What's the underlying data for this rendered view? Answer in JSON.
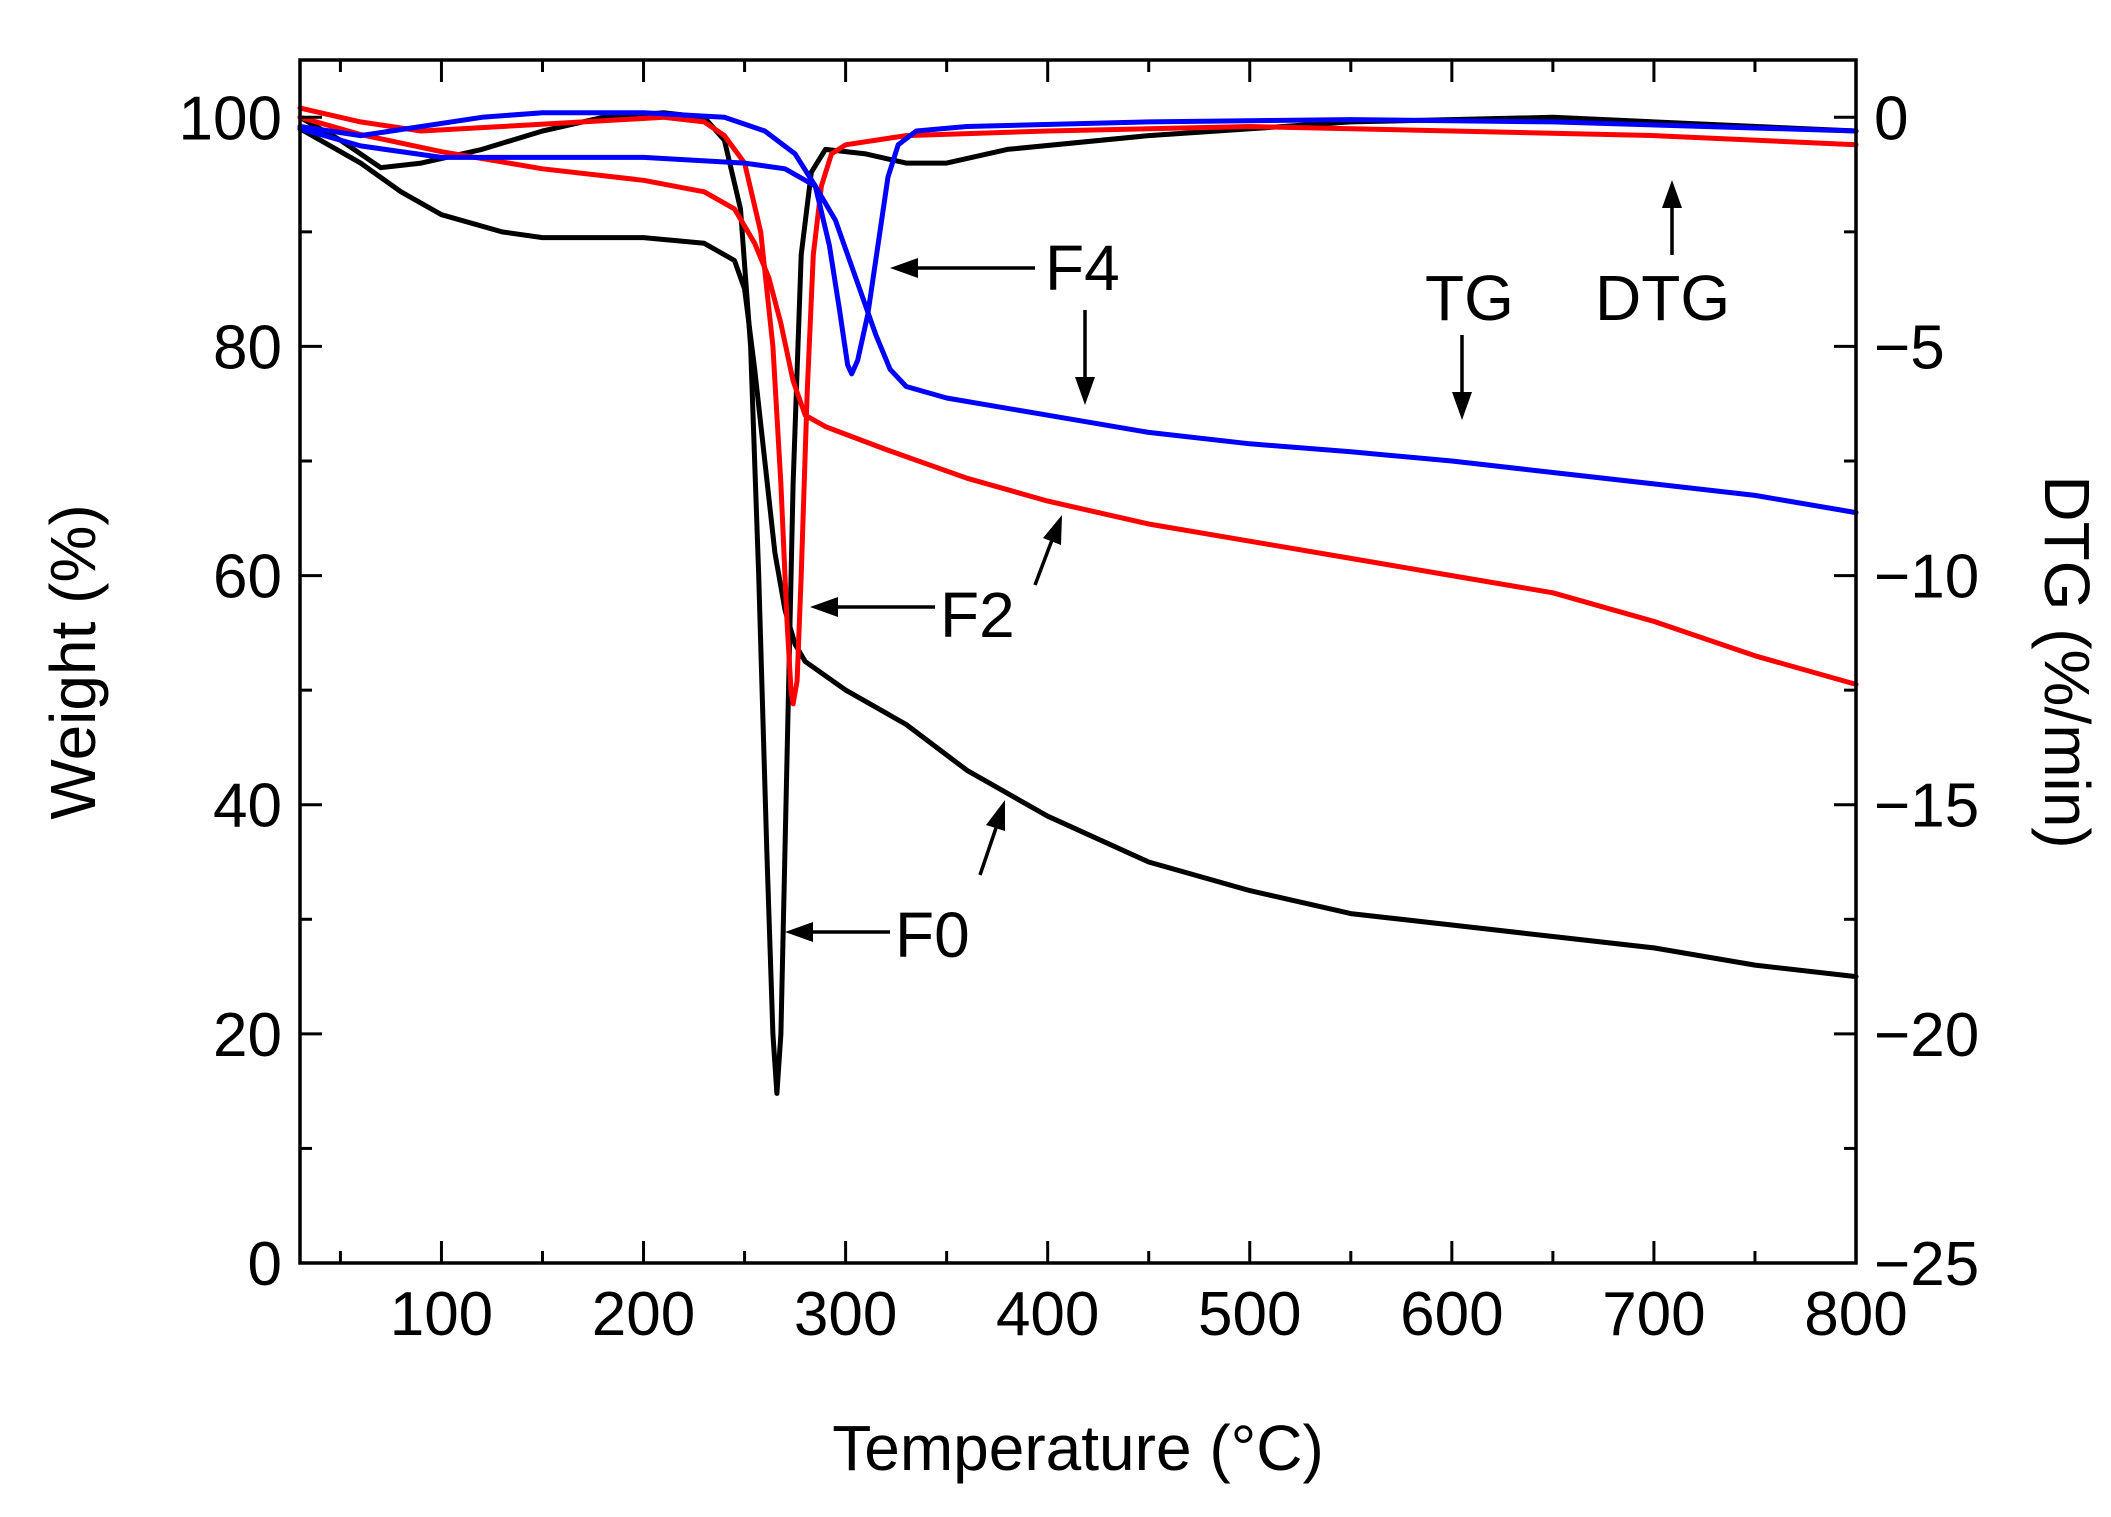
{
  "chart_data": {
    "type": "line",
    "title": "",
    "xlabel": "Temperature (°C)",
    "ylabel_left": "Weight (%)",
    "ylabel_right": "DTG (%/min)",
    "xlim": [
      30,
      800
    ],
    "ylim_left": [
      0,
      105
    ],
    "ylim_right": [
      -25,
      1.25
    ],
    "x_ticks": [
      100,
      200,
      300,
      400,
      500,
      600,
      700,
      800
    ],
    "y_left_ticks": [
      0,
      20,
      40,
      60,
      80,
      100
    ],
    "y_right_ticks": [
      0,
      -5,
      -10,
      -15,
      -20,
      -25
    ],
    "grid": false,
    "colors": {
      "F0": "#000000",
      "F2": "#ff0000",
      "F4": "#0000ff"
    },
    "series": [
      {
        "name": "F0",
        "kind": "TG",
        "axis": "left",
        "color": "#000000",
        "points": [
          [
            30,
            99
          ],
          [
            60,
            96
          ],
          [
            80,
            93.5
          ],
          [
            100,
            91.5
          ],
          [
            130,
            90
          ],
          [
            150,
            89.5
          ],
          [
            200,
            89.5
          ],
          [
            230,
            89
          ],
          [
            245,
            87.5
          ],
          [
            250,
            85
          ],
          [
            255,
            78
          ],
          [
            260,
            70
          ],
          [
            265,
            62
          ],
          [
            270,
            57
          ],
          [
            275,
            54
          ],
          [
            280,
            52.5
          ],
          [
            300,
            50
          ],
          [
            330,
            47
          ],
          [
            360,
            43
          ],
          [
            400,
            39
          ],
          [
            450,
            35
          ],
          [
            500,
            32.5
          ],
          [
            550,
            30.5
          ],
          [
            600,
            29.5
          ],
          [
            650,
            28.5
          ],
          [
            700,
            27.5
          ],
          [
            750,
            26
          ],
          [
            800,
            25
          ]
        ]
      },
      {
        "name": "F0",
        "kind": "DTG",
        "axis": "right",
        "color": "#000000",
        "points": [
          [
            30,
            0
          ],
          [
            50,
            -0.5
          ],
          [
            70,
            -1.1
          ],
          [
            90,
            -1
          ],
          [
            120,
            -0.7
          ],
          [
            150,
            -0.3
          ],
          [
            180,
            0
          ],
          [
            210,
            0.1
          ],
          [
            230,
            0
          ],
          [
            240,
            -0.5
          ],
          [
            248,
            -2
          ],
          [
            253,
            -5
          ],
          [
            257,
            -10
          ],
          [
            261,
            -16
          ],
          [
            264,
            -20
          ],
          [
            266,
            -21.3
          ],
          [
            268,
            -20
          ],
          [
            271,
            -14
          ],
          [
            274,
            -8
          ],
          [
            278,
            -3
          ],
          [
            283,
            -1.2
          ],
          [
            290,
            -0.7
          ],
          [
            310,
            -0.8
          ],
          [
            330,
            -1
          ],
          [
            350,
            -1
          ],
          [
            380,
            -0.7
          ],
          [
            450,
            -0.4
          ],
          [
            550,
            -0.1
          ],
          [
            650,
            0
          ],
          [
            800,
            -0.3
          ]
        ]
      },
      {
        "name": "F2",
        "kind": "TG",
        "axis": "left",
        "color": "#ff0000",
        "points": [
          [
            30,
            100
          ],
          [
            60,
            98.5
          ],
          [
            100,
            97
          ],
          [
            150,
            95.5
          ],
          [
            200,
            94.5
          ],
          [
            230,
            93.5
          ],
          [
            245,
            92
          ],
          [
            255,
            89
          ],
          [
            262,
            86
          ],
          [
            268,
            82
          ],
          [
            274,
            77
          ],
          [
            280,
            74
          ],
          [
            290,
            73
          ],
          [
            320,
            71
          ],
          [
            360,
            68.5
          ],
          [
            400,
            66.5
          ],
          [
            450,
            64.5
          ],
          [
            500,
            63
          ],
          [
            550,
            61.5
          ],
          [
            600,
            60
          ],
          [
            650,
            58.5
          ],
          [
            700,
            56
          ],
          [
            750,
            53
          ],
          [
            800,
            50.5
          ]
        ]
      },
      {
        "name": "F2",
        "kind": "DTG",
        "axis": "right",
        "color": "#ff0000",
        "points": [
          [
            30,
            0.2
          ],
          [
            60,
            -0.1
          ],
          [
            90,
            -0.3
          ],
          [
            130,
            -0.2
          ],
          [
            170,
            -0.1
          ],
          [
            210,
            0
          ],
          [
            230,
            -0.1
          ],
          [
            240,
            -0.4
          ],
          [
            250,
            -1
          ],
          [
            258,
            -2.5
          ],
          [
            264,
            -5
          ],
          [
            268,
            -8
          ],
          [
            271,
            -11
          ],
          [
            273,
            -12.5
          ],
          [
            274,
            -12.8
          ],
          [
            276,
            -12.3
          ],
          [
            278,
            -10
          ],
          [
            281,
            -6
          ],
          [
            284,
            -3
          ],
          [
            288,
            -1.5
          ],
          [
            293,
            -0.8
          ],
          [
            300,
            -0.6
          ],
          [
            330,
            -0.4
          ],
          [
            400,
            -0.3
          ],
          [
            500,
            -0.2
          ],
          [
            600,
            -0.3
          ],
          [
            700,
            -0.4
          ],
          [
            800,
            -0.6
          ]
        ]
      },
      {
        "name": "F4",
        "kind": "TG",
        "axis": "left",
        "color": "#0000ff",
        "points": [
          [
            30,
            99
          ],
          [
            60,
            97.5
          ],
          [
            100,
            96.5
          ],
          [
            150,
            96.5
          ],
          [
            200,
            96.5
          ],
          [
            250,
            96
          ],
          [
            270,
            95.5
          ],
          [
            285,
            94
          ],
          [
            295,
            91
          ],
          [
            305,
            86
          ],
          [
            315,
            81
          ],
          [
            322,
            78
          ],
          [
            330,
            76.5
          ],
          [
            350,
            75.5
          ],
          [
            400,
            74
          ],
          [
            450,
            72.5
          ],
          [
            500,
            71.5
          ],
          [
            550,
            70.8
          ],
          [
            600,
            70
          ],
          [
            650,
            69
          ],
          [
            700,
            68
          ],
          [
            750,
            67
          ],
          [
            800,
            65.5
          ]
        ]
      },
      {
        "name": "F4",
        "kind": "DTG",
        "axis": "right",
        "color": "#0000ff",
        "points": [
          [
            30,
            -0.2
          ],
          [
            60,
            -0.4
          ],
          [
            90,
            -0.2
          ],
          [
            120,
            0
          ],
          [
            150,
            0.1
          ],
          [
            200,
            0.1
          ],
          [
            240,
            0
          ],
          [
            260,
            -0.3
          ],
          [
            275,
            -0.8
          ],
          [
            285,
            -1.5
          ],
          [
            292,
            -2.8
          ],
          [
            297,
            -4.2
          ],
          [
            301,
            -5.4
          ],
          [
            303,
            -5.6
          ],
          [
            306,
            -5.3
          ],
          [
            311,
            -4.3
          ],
          [
            316,
            -2.8
          ],
          [
            321,
            -1.3
          ],
          [
            326,
            -0.6
          ],
          [
            335,
            -0.3
          ],
          [
            360,
            -0.2
          ],
          [
            450,
            -0.1
          ],
          [
            550,
            -0.05
          ],
          [
            650,
            -0.1
          ],
          [
            800,
            -0.3
          ]
        ]
      }
    ],
    "annotations": [
      {
        "text": "F4",
        "target_series": "F4 DTG"
      },
      {
        "text": "F2",
        "target_series": "F2 DTG"
      },
      {
        "text": "F0",
        "target_series": "F0 DTG"
      },
      {
        "text": "TG",
        "meaning": "weight curves (left axis)"
      },
      {
        "text": "DTG",
        "meaning": "derivative curves (right axis)"
      }
    ]
  }
}
